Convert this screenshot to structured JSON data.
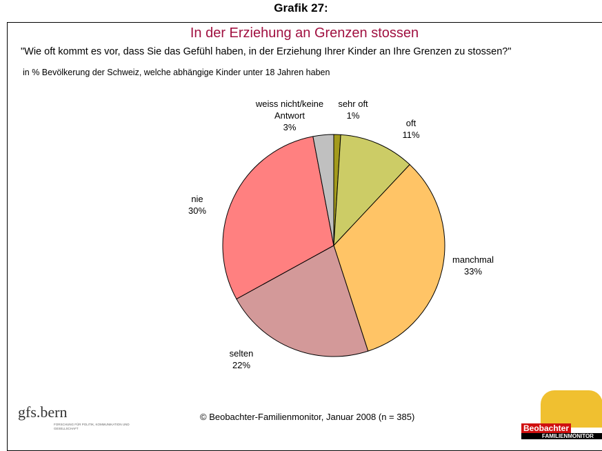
{
  "header": "Grafik 27:",
  "chart_data": {
    "type": "pie",
    "title": "In der Erziehung an Grenzen stossen",
    "subtitle": "\"Wie oft kommt es vor, dass Sie das Gefühl haben, in der Erziehung Ihrer Kinder an Ihre Grenzen zu stossen?\"",
    "note": "in % Bevölkerung der Schweiz, welche abhängige Kinder unter 18 Jahren haben",
    "categories": [
      "sehr oft",
      "oft",
      "manchmal",
      "selten",
      "nie",
      "weiss nicht/keine Antwort"
    ],
    "values": [
      1,
      11,
      33,
      22,
      30,
      3
    ],
    "value_labels": [
      "1%",
      "11%",
      "33%",
      "22%",
      "30%",
      "3%"
    ],
    "colors": [
      "#a39a1c",
      "#cccc66",
      "#ffc466",
      "#d39999",
      "#ff8080",
      "#c0c0c0"
    ]
  },
  "footer": "© Beobachter-Familienmonitor, Januar 2008 (n = 385)",
  "logos": {
    "gfs": "gfs.bern",
    "gfs_tagline": "FORSCHUNG FÜR POLITIK, KOMMUNIKATION UND GESELLSCHAFT",
    "beobachter": "Beobachter",
    "beobachter_sub": "FAMILIENMONITOR"
  }
}
